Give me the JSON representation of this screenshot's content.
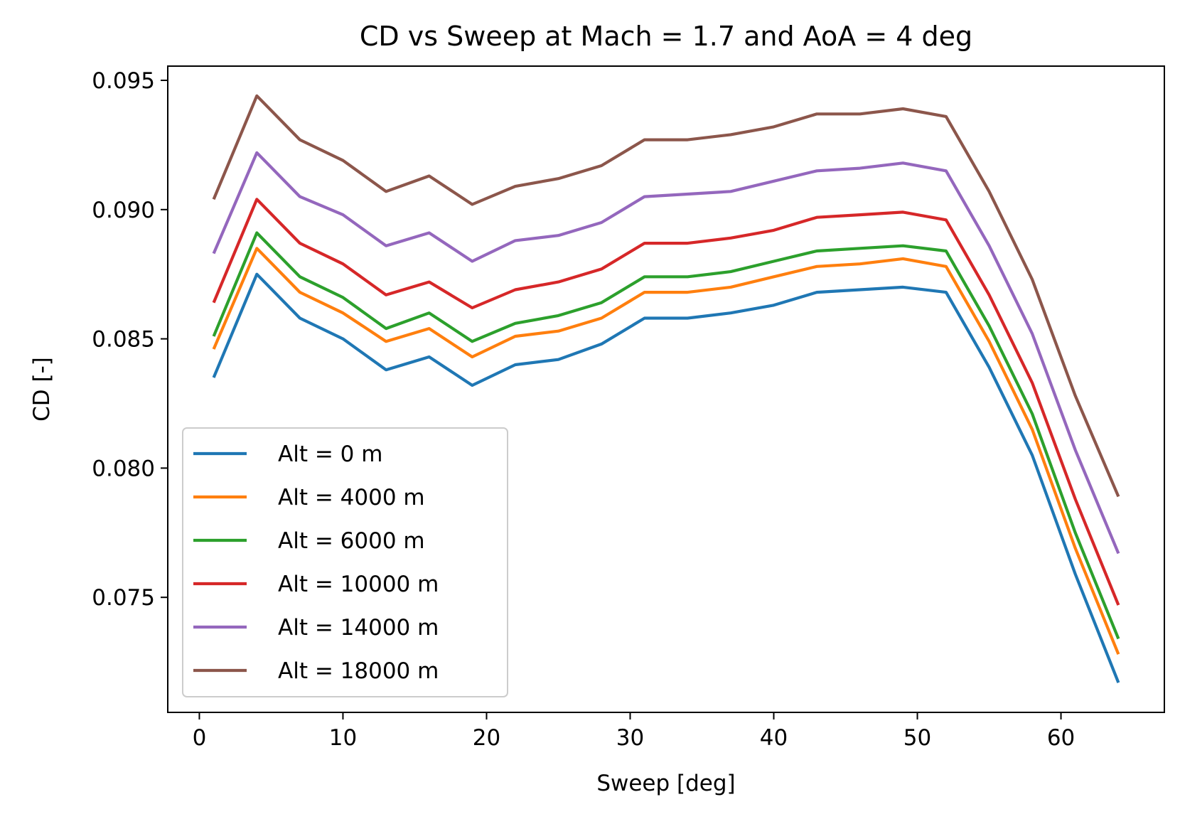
{
  "chart_data": {
    "type": "line",
    "title": "CD vs Sweep at Mach = 1.7 and AoA = 4 deg",
    "xlabel": "Sweep [deg]",
    "ylabel": "CD [-]",
    "xlim": [
      -2.2,
      67.2
    ],
    "ylim": [
      0.07055,
      0.09555
    ],
    "xticks": [
      0,
      10,
      20,
      30,
      40,
      50,
      60
    ],
    "yticks": [
      0.075,
      0.08,
      0.085,
      0.09,
      0.095
    ],
    "ytick_labels": [
      "0.075",
      "0.080",
      "0.085",
      "0.090",
      "0.095"
    ],
    "grid": false,
    "legend_position": "lower-left",
    "x": [
      1,
      4,
      7,
      10,
      13,
      16,
      19,
      22,
      25,
      28,
      31,
      34,
      37,
      40,
      43,
      46,
      49,
      52,
      55,
      58,
      61,
      64
    ],
    "series": [
      {
        "name": "Alt = 0 m",
        "color": "#1f77b4",
        "values": [
          0.0835,
          0.0875,
          0.0858,
          0.085,
          0.0838,
          0.0843,
          0.0832,
          0.084,
          0.0842,
          0.0848,
          0.0858,
          0.0858,
          0.086,
          0.0863,
          0.0868,
          0.0869,
          0.087,
          0.0868,
          0.0839,
          0.0805,
          0.0759,
          0.0717
        ]
      },
      {
        "name": "Alt = 4000 m",
        "color": "#ff7f0e",
        "values": [
          0.0846,
          0.0885,
          0.0868,
          0.086,
          0.0849,
          0.0854,
          0.0843,
          0.0851,
          0.0853,
          0.0858,
          0.0868,
          0.0868,
          0.087,
          0.0874,
          0.0878,
          0.0879,
          0.0881,
          0.0878,
          0.0849,
          0.0815,
          0.0769,
          0.0728
        ]
      },
      {
        "name": "Alt = 6000 m",
        "color": "#2ca02c",
        "values": [
          0.0851,
          0.0891,
          0.0874,
          0.0866,
          0.0854,
          0.086,
          0.0849,
          0.0856,
          0.0859,
          0.0864,
          0.0874,
          0.0874,
          0.0876,
          0.088,
          0.0884,
          0.0885,
          0.0886,
          0.0884,
          0.0855,
          0.0821,
          0.0775,
          0.0734
        ]
      },
      {
        "name": "Alt = 10000 m",
        "color": "#d62728",
        "values": [
          0.0864,
          0.0904,
          0.0887,
          0.0879,
          0.0867,
          0.0872,
          0.0862,
          0.0869,
          0.0872,
          0.0877,
          0.0887,
          0.0887,
          0.0889,
          0.0892,
          0.0897,
          0.0898,
          0.0899,
          0.0896,
          0.0867,
          0.0833,
          0.0788,
          0.0747
        ]
      },
      {
        "name": "Alt = 14000 m",
        "color": "#9467bd",
        "values": [
          0.0883,
          0.0922,
          0.0905,
          0.0898,
          0.0886,
          0.0891,
          0.088,
          0.0888,
          0.089,
          0.0895,
          0.0905,
          0.0906,
          0.0907,
          0.0911,
          0.0915,
          0.0916,
          0.0918,
          0.0915,
          0.0886,
          0.0852,
          0.0807,
          0.0767
        ]
      },
      {
        "name": "Alt = 18000 m",
        "color": "#8c564b",
        "values": [
          0.0904,
          0.0944,
          0.0927,
          0.0919,
          0.0907,
          0.0913,
          0.0902,
          0.0909,
          0.0912,
          0.0917,
          0.0927,
          0.0927,
          0.0929,
          0.0932,
          0.0937,
          0.0937,
          0.0939,
          0.0936,
          0.0907,
          0.0873,
          0.0828,
          0.0789
        ]
      }
    ]
  }
}
